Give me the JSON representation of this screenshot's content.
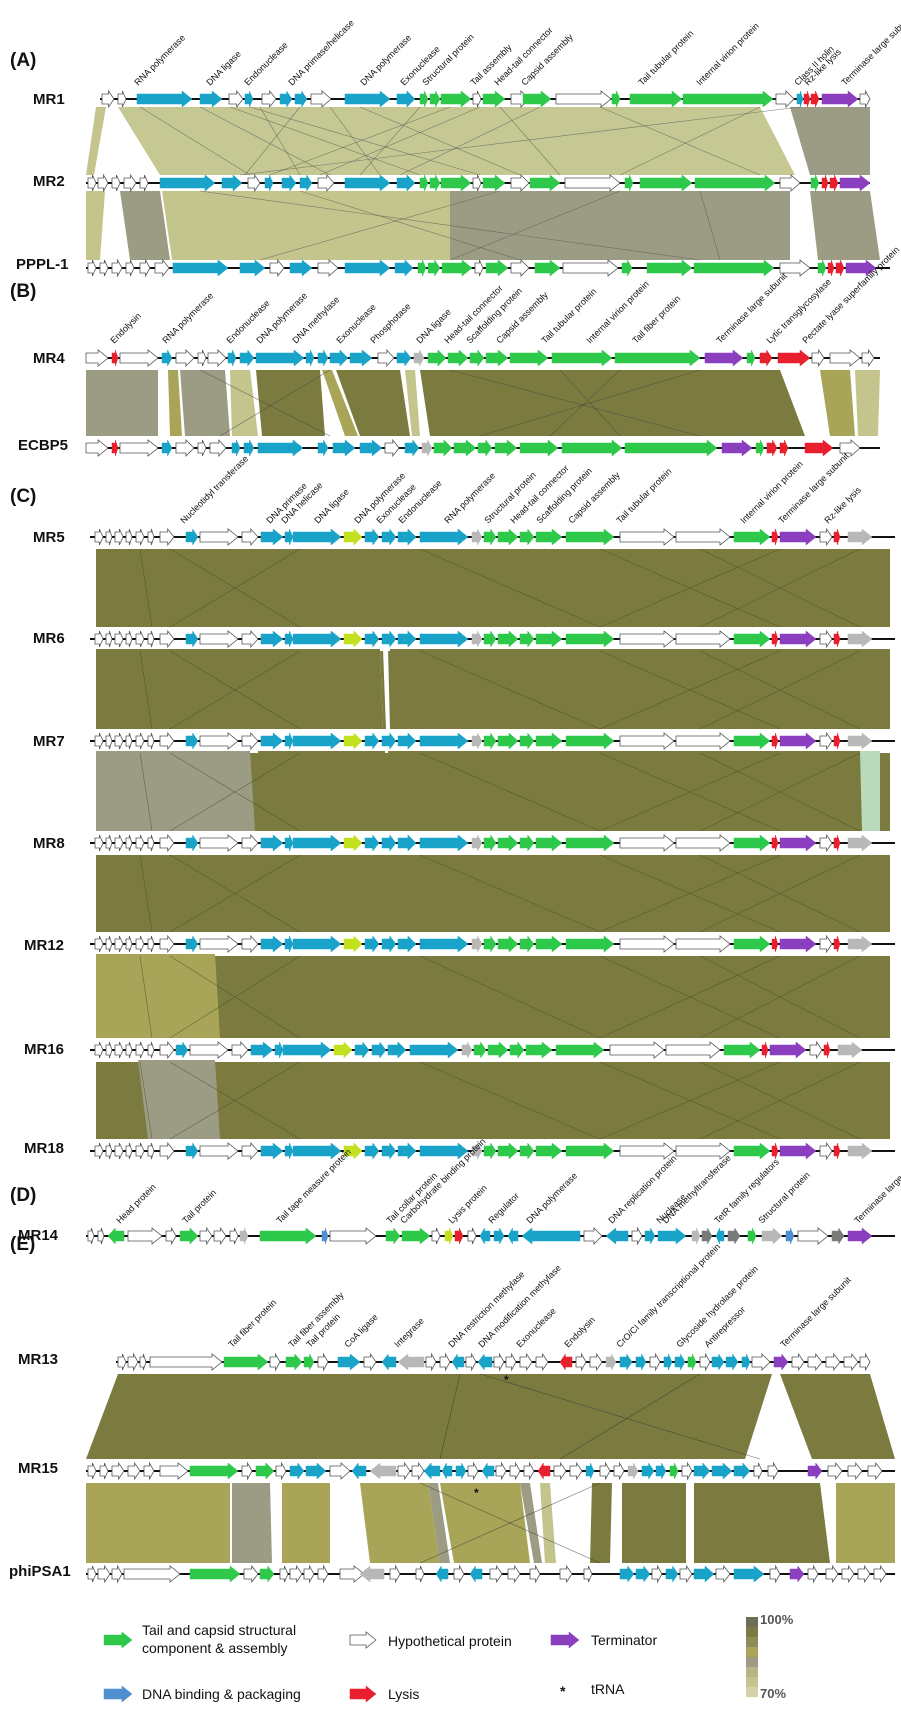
{
  "colors": {
    "structural": "#2ec84a",
    "dna": "#1aa3c9",
    "binding": "#4f8fcf",
    "lysis": "#e8202e",
    "terminase": "#8b3fbf",
    "hypothetical": "#ffffff",
    "other": "#b8b8b8",
    "yellowgreen": "#c3e01e",
    "darkgray": "#7a7a7a",
    "homology_high": "#7c7b3f",
    "homology_mid": "#a8a558",
    "homology_low": "#c3c58d",
    "homology_gray": "#9c9c84"
  },
  "panels": [
    {
      "label": "(A)",
      "genomes": [
        "MR1",
        "MR2",
        "PPPL-1"
      ]
    },
    {
      "label": "(B)",
      "genomes": [
        "MR4",
        "ECBP5"
      ]
    },
    {
      "label": "(C)",
      "genomes": [
        "MR5",
        "MR6",
        "MR7",
        "MR8",
        "MR12",
        "MR16",
        "MR18"
      ]
    },
    {
      "label": "(D)",
      "genomes": [
        "MR14"
      ]
    },
    {
      "label": "(E)",
      "genomes": [
        "MR13",
        "MR15",
        "phiPSA1"
      ]
    }
  ],
  "annotations": {
    "A": [
      "RNA polymerase",
      "DNA ligase",
      "Endonuclease",
      "DNA primase/helicase",
      "DNA polymerase",
      "Exonuclease",
      "Structural protein",
      "Tail assembly",
      "Head-tail connector",
      "Capsid assembly",
      "Tail tubular protein",
      "Internal virion protein",
      "Class II holin",
      "Rz-like lysis",
      "Terminase large subunit"
    ],
    "B": [
      "Endolysin",
      "RNA polymerase",
      "Endonuclease",
      "DNA polymerase",
      "DNA methylase",
      "Exonuclease",
      "Phosphotase",
      "DNA ligase",
      "Head-tail connector",
      "Scaffolding protein",
      "Capsid assembly",
      "Tail tubular protein",
      "Internal virion protein",
      "Tail fiber protein",
      "Terminase large subunit",
      "Lytic transglycosylase",
      "Pectate lyase superfamily protein"
    ],
    "C": [
      "Nucleotidyl transferase",
      "DNA primase",
      "DNA helicase",
      "DNA ligase",
      "DNA polymerase",
      "Exonuclease",
      "Endonuclease",
      "RNA polymerase",
      "Structural protein",
      "Head-tail connector",
      "Scaffolding protein",
      "Capsid assembly",
      "Tail tubular protein",
      "Internal virion protein",
      "Terminase large subunit",
      "Rz-like lysis"
    ],
    "D": [
      "Head protein",
      "Tail protein",
      "Tail tape measure protein",
      "Tail collar protein",
      "Carbohydrate binding protein",
      "Lysis protein",
      "Regulator",
      "DNA polymerase",
      "DNA replication protein",
      "Nuclease",
      "DNA methyltransferase",
      "TetR family regulators",
      "Structural protein",
      "Terminase large subunit"
    ],
    "E": [
      "Tail fiber protein",
      "Tail fiber assembly",
      "Tail protein",
      "CoA ligase",
      "Integrase",
      "DNA restriction methylase",
      "DNA modification methylase",
      "Exonuclease",
      "Endolysin",
      "CrO/CI family transcriptional protein",
      "Glycoside hydrolase protein",
      "Antirepressor",
      "Terminase large subunit"
    ]
  },
  "legend": {
    "structural": "Tail and capsid structural component & assembly",
    "hypothetical": "Hypothetical protein",
    "terminator": "Terminator",
    "binding": "DNA binding & packaging",
    "lysis": "Lysis",
    "trna_symbol": "*",
    "trna": "tRNA",
    "scale_max": "100%",
    "scale_min": "70%"
  }
}
